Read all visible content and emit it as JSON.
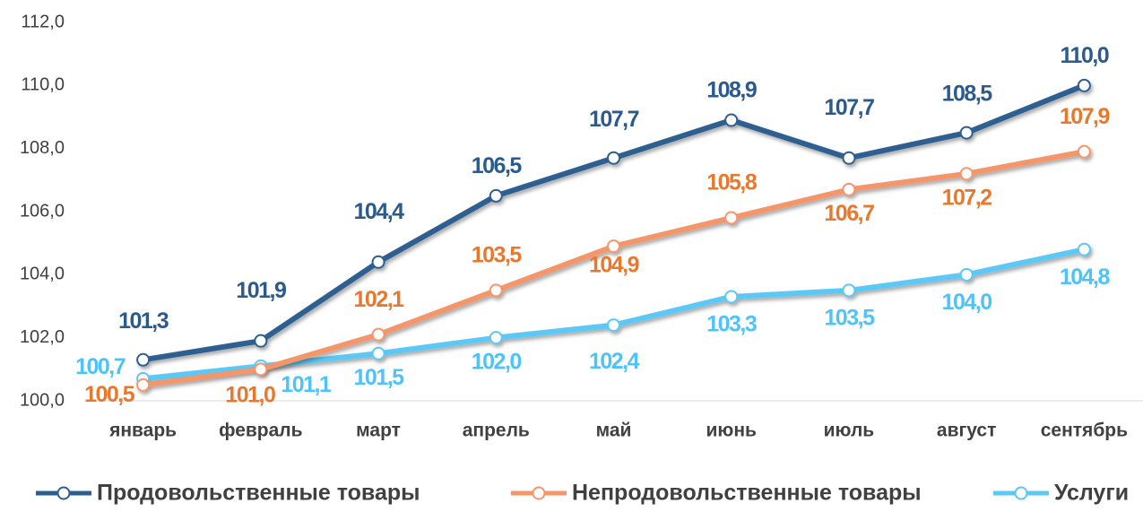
{
  "chart_data": {
    "type": "line",
    "categories": [
      "январь",
      "февраль",
      "март",
      "апрель",
      "май",
      "июнь",
      "июль",
      "август",
      "сентябрь"
    ],
    "series": [
      {
        "name": "Продовольственные товары",
        "color": "#2e5e91",
        "label_color": "#2b5a8c",
        "values": [
          101.3,
          101.9,
          104.4,
          106.5,
          107.7,
          108.9,
          107.7,
          108.5,
          110.0
        ],
        "value_labels": [
          "101,3",
          "101,9",
          "104,4",
          "106,5",
          "107,7",
          "108,9",
          "107,7",
          "108,5",
          "110,0"
        ]
      },
      {
        "name": "Непродовольственные товары",
        "color": "#f5956a",
        "label_color": "#e8782d",
        "values": [
          100.5,
          101.0,
          102.1,
          103.5,
          104.9,
          105.8,
          106.7,
          107.2,
          107.9
        ],
        "value_labels": [
          "100,5",
          "101,0",
          "102,1",
          "103,5",
          "104,9",
          "105,8",
          "106,7",
          "107,2",
          "107,9"
        ]
      },
      {
        "name": "Услуги",
        "color": "#5bc8f5",
        "label_color": "#4fc3f7",
        "values": [
          100.7,
          101.1,
          101.5,
          102.0,
          102.4,
          103.3,
          103.5,
          104.0,
          104.8
        ],
        "value_labels": [
          "100,7",
          "101,1",
          "101,5",
          "102,0",
          "102,4",
          "103,3",
          "103,5",
          "104,0",
          "104,8"
        ]
      }
    ],
    "ylim": [
      100,
      112
    ],
    "yticks": [
      {
        "value": 100,
        "label": "100,0"
      },
      {
        "value": 102,
        "label": "102,0"
      },
      {
        "value": 104,
        "label": "104,0"
      },
      {
        "value": 106,
        "label": "106,0"
      },
      {
        "value": 108,
        "label": "108,0"
      },
      {
        "value": 110,
        "label": "110,0"
      },
      {
        "value": 112,
        "label": "112,0"
      }
    ],
    "grid": false,
    "legend": "bottom"
  }
}
